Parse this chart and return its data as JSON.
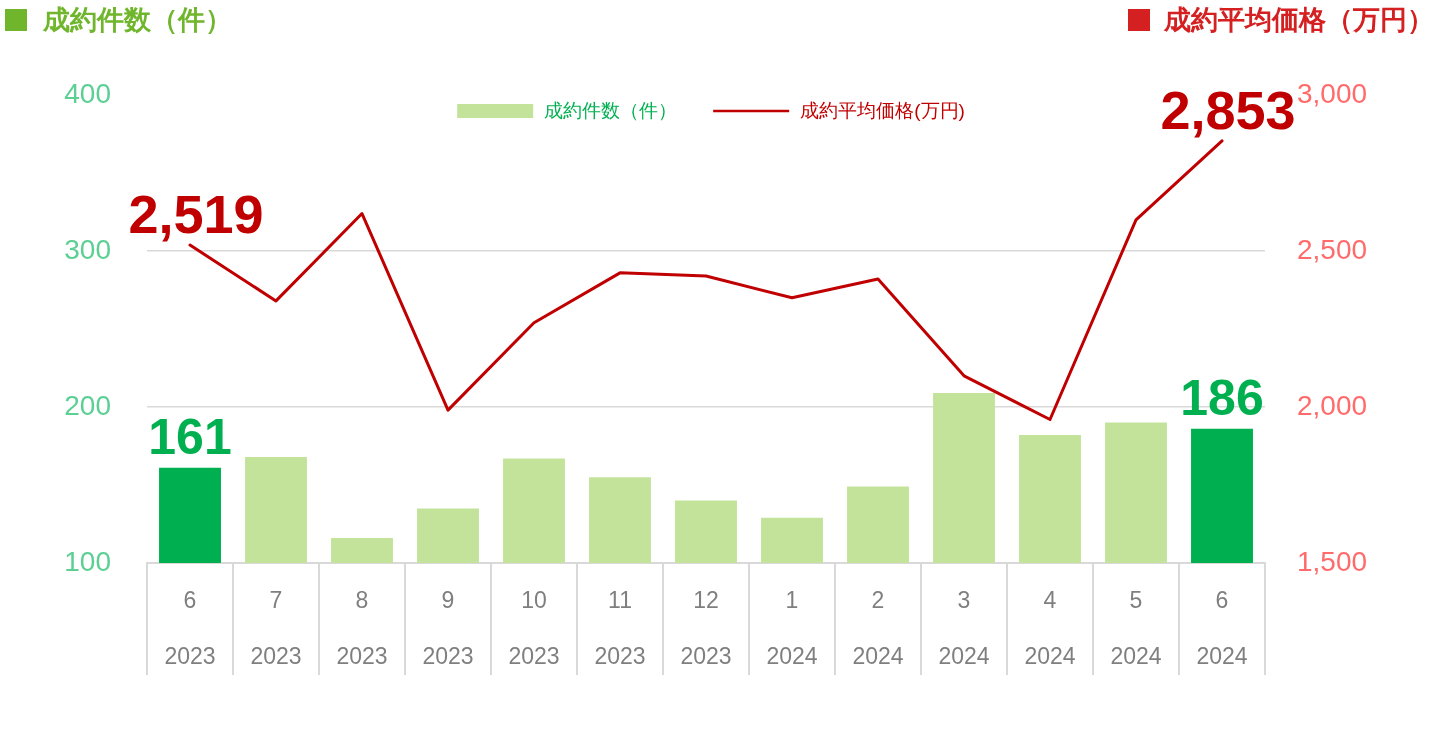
{
  "chart_data": {
    "type": "bar",
    "ylabel": "成約件数（件）",
    "y2label": "成約平均価格（万円）",
    "categories": [
      "6\n2023",
      "7\n2023",
      "8\n2023",
      "9\n2023",
      "10\n2023",
      "11\n2023",
      "12\n2023",
      "1\n2024",
      "2\n2024",
      "3\n2024",
      "4\n2024",
      "5\n2024",
      "6\n2024"
    ],
    "series": [
      {
        "name": "成約件数（件）",
        "color": "#c3e39b",
        "colors": [
          "#00b050",
          "#c3e39b",
          "#c3e39b",
          "#c3e39b",
          "#c3e39b",
          "#c3e39b",
          "#c3e39b",
          "#c3e39b",
          "#c3e39b",
          "#c3e39b",
          "#c3e39b",
          "#c3e39b",
          "#00b050"
        ],
        "values": [
          161,
          168,
          116,
          135,
          167,
          155,
          140,
          129,
          149,
          209,
          182,
          190,
          186
        ],
        "value_labels": [
          "161",
          null,
          null,
          null,
          null,
          null,
          null,
          null,
          null,
          null,
          null,
          null,
          "186"
        ]
      },
      {
        "name": "成約平均価格(万円)",
        "type": "line",
        "axis": "y2",
        "color": "#c00000",
        "values": [
          2519,
          2340,
          2620,
          1990,
          2270,
          2430,
          2420,
          2350,
          2410,
          2100,
          1960,
          2600,
          2853
        ],
        "value_labels": [
          "2,519",
          null,
          null,
          null,
          null,
          null,
          null,
          null,
          null,
          null,
          null,
          null,
          "2,853"
        ]
      }
    ],
    "ylim": [
      100,
      400
    ],
    "yticks": [
      100,
      200,
      300,
      400
    ],
    "y2lim": [
      1500,
      3000
    ],
    "y2ticks": [
      {
        "value": 1500,
        "label": "1,500"
      },
      {
        "value": 2000,
        "label": "2,000"
      },
      {
        "value": 2500,
        "label": "2,500"
      },
      {
        "value": 3000,
        "label": "3,000"
      }
    ],
    "grid": "y",
    "legend": "top",
    "marker": "none"
  }
}
